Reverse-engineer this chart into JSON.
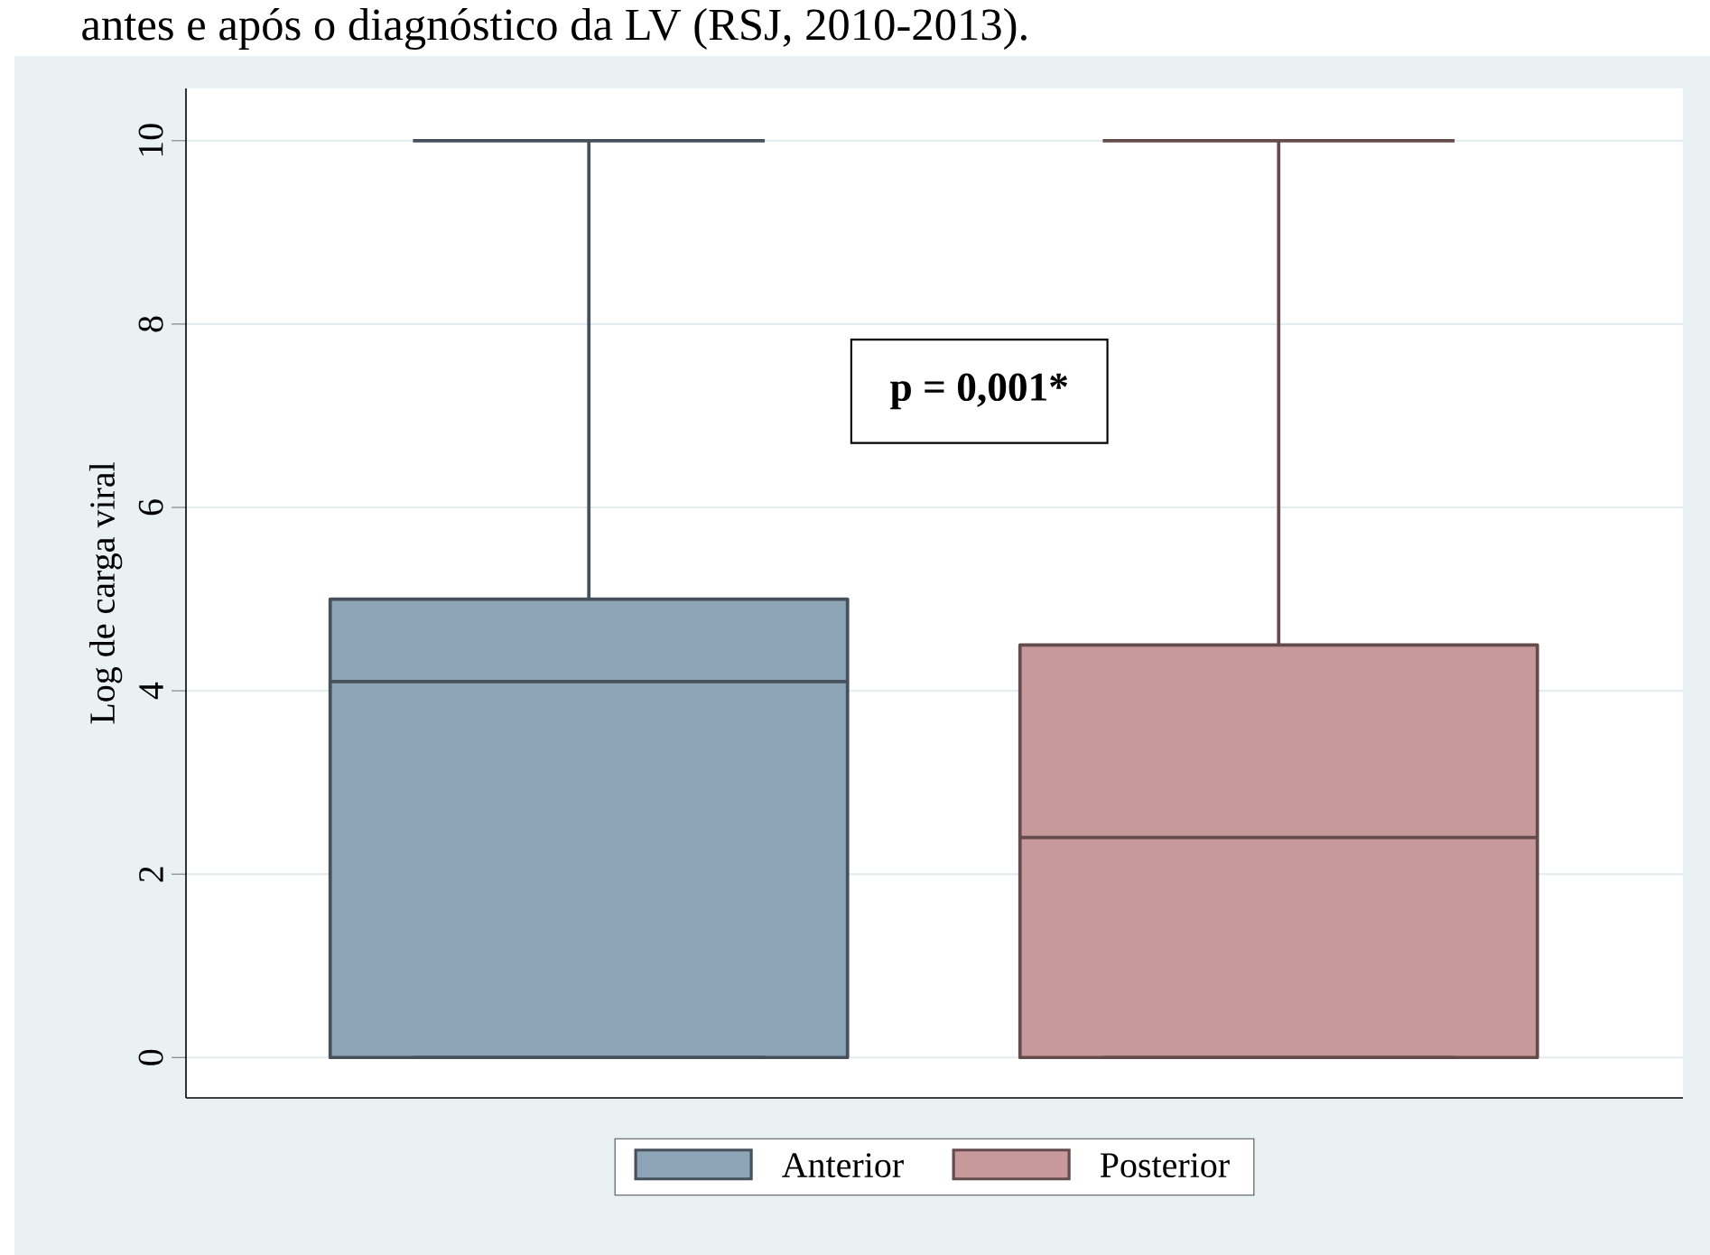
{
  "chart_data": {
    "type": "box",
    "title": "antes e após o diagnóstico da LV (RSJ, 2010-2013).",
    "ylabel": "Log de carga viral",
    "categories": [
      null,
      null
    ],
    "series": [
      {
        "name": "Anterior",
        "color": "#8da3b6",
        "boxes": [
          {
            "low": 0,
            "q1": 0,
            "median": 4.1,
            "q3": 5,
            "high": 10
          },
          null
        ]
      },
      {
        "name": "Posterior",
        "color": "#c8999b",
        "boxes": [
          null,
          {
            "low": 0,
            "q1": 0,
            "median": 2.4,
            "q3": 4.5,
            "high": 10
          }
        ]
      }
    ],
    "ylim": [
      -0.44,
      10.57
    ],
    "yticks": [
      0,
      2,
      4,
      6,
      8,
      10
    ],
    "grid": "y",
    "legend": "bottom",
    "annotations": [
      "p = 0,001*"
    ]
  }
}
